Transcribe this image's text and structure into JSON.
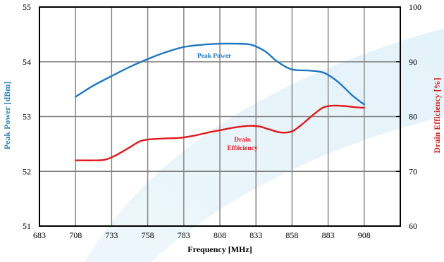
{
  "chart_data": {
    "type": "line",
    "xlabel": "Frequency [MHz]",
    "ylabel_left": "Peak Power [dBm]",
    "ylabel_right": "Drain Efficiency [%]",
    "xlim": [
      683,
      933
    ],
    "x_ticks": [
      683,
      708,
      733,
      758,
      783,
      808,
      833,
      858,
      883,
      908
    ],
    "ylim_left": [
      51,
      55
    ],
    "y_ticks_left": [
      51,
      52,
      53,
      54,
      55
    ],
    "ylim_right": [
      60,
      100
    ],
    "y_ticks_right": [
      60,
      70,
      80,
      90,
      100
    ],
    "grid": true,
    "series": [
      {
        "name": "Peak Power",
        "axis": "left",
        "color": "#1f77c4",
        "label_lines": [
          "Peak Power"
        ],
        "x": [
          708,
          720,
          733,
          745,
          758,
          770,
          783,
          795,
          808,
          820,
          828,
          833,
          840,
          848,
          858,
          870,
          880,
          890,
          900,
          908
        ],
        "y": [
          53.36,
          53.56,
          53.74,
          53.9,
          54.05,
          54.17,
          54.27,
          54.31,
          54.33,
          54.33,
          54.32,
          54.28,
          54.18,
          54.0,
          53.86,
          53.84,
          53.8,
          53.63,
          53.38,
          53.22
        ]
      },
      {
        "name": "Drain Efficiency",
        "axis": "right",
        "color": "#e0191c",
        "label_lines": [
          "Drain",
          "Effiiciency"
        ],
        "x": [
          708,
          720,
          728,
          735,
          745,
          752,
          758,
          770,
          780,
          790,
          800,
          808,
          818,
          828,
          835,
          843,
          850,
          858,
          865,
          873,
          880,
          887,
          895,
          902,
          908
        ],
        "y": [
          72.0,
          72.0,
          72.1,
          72.8,
          74.3,
          75.4,
          75.8,
          76.0,
          76.1,
          76.5,
          77.1,
          77.5,
          78.0,
          78.3,
          78.2,
          77.6,
          77.1,
          77.3,
          78.6,
          80.4,
          81.7,
          82.0,
          81.9,
          81.7,
          81.6
        ]
      }
    ]
  }
}
